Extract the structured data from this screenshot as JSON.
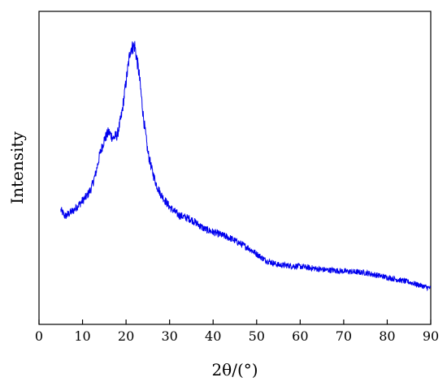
{
  "chart_data": {
    "type": "line",
    "title": "",
    "xlabel": "2θ/(°)",
    "ylabel": "Intensity",
    "xlim": [
      0,
      90
    ],
    "ylim": [
      0,
      100
    ],
    "x_ticks": [
      "0",
      "10",
      "20",
      "30",
      "40",
      "50",
      "60",
      "70",
      "80",
      "90"
    ],
    "y_ticks_shown": false,
    "grid": false,
    "legend": "none",
    "series": [
      {
        "color": "#0000ee",
        "x": [
          5,
          6,
          7,
          8,
          9,
          10,
          11,
          12,
          13,
          14,
          15,
          16,
          17,
          18,
          19,
          20,
          21,
          22,
          23,
          24,
          25,
          26,
          27,
          28,
          29,
          30,
          32,
          34,
          35,
          36,
          38,
          40,
          42,
          44,
          46,
          48,
          50,
          52,
          55,
          60,
          65,
          70,
          75,
          80,
          85,
          90
        ],
        "y": [
          36.5,
          34.5,
          35.5,
          36.5,
          38,
          39.5,
          41,
          43.5,
          48,
          54.5,
          59,
          61.5,
          59.5,
          60.5,
          67,
          77.5,
          88,
          89,
          80,
          66,
          55,
          49,
          44.5,
          41.5,
          39.5,
          37.5,
          35,
          34,
          33.5,
          32.5,
          30.5,
          29.5,
          28.5,
          27.5,
          26,
          24.5,
          22.5,
          20.5,
          19,
          18.5,
          17.5,
          17,
          16.5,
          15,
          13.5,
          11.5
        ]
      }
    ]
  }
}
